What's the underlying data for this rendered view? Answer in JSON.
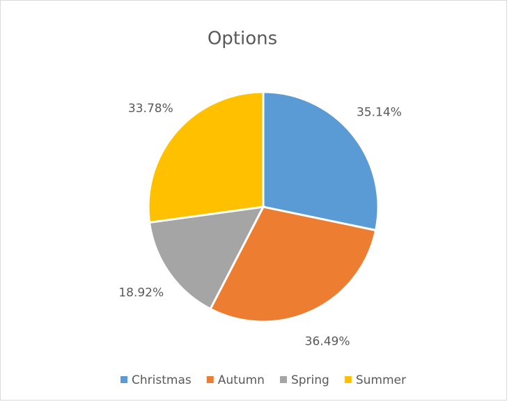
{
  "chart_data": {
    "type": "pie",
    "title": "Options",
    "categories": [
      "Christmas",
      "Autumn",
      "Spring",
      "Summer"
    ],
    "values": [
      35.14,
      36.49,
      18.92,
      33.78
    ],
    "value_labels": [
      "35.14%",
      "36.49%",
      "18.92%",
      "33.78%"
    ],
    "colors": [
      "#5b9bd5",
      "#ed7d31",
      "#a5a5a5",
      "#ffc000"
    ],
    "legend": "bottom"
  }
}
